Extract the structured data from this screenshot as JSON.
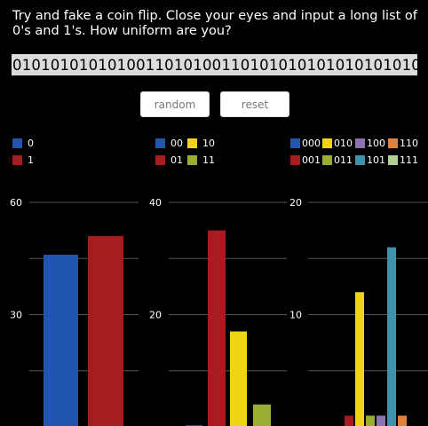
{
  "prompt": "Try and fake a coin flip. Close your eyes and input a long list of 0's and 1's. How uniform are you?",
  "sequence_value": "0101010101010011010100110101010101010101010",
  "buttons": {
    "random_label": "random",
    "reset_label": "reset"
  },
  "colors": {
    "0": "#2255b0",
    "1": "#a51d1e",
    "00": "#2255b0",
    "01": "#a51d1e",
    "10": "#f2d416",
    "11": "#9aad30",
    "000": "#2255b0",
    "001": "#a51d1e",
    "010": "#f2d416",
    "011": "#9aad30",
    "100": "#8c74b0",
    "101": "#3f92ad",
    "110": "#e0803a",
    "111": "#b4cf95"
  },
  "legends": {
    "single": [
      "0",
      "1"
    ],
    "pairs": [
      "00",
      "10",
      "01",
      "11"
    ],
    "triples": [
      "000",
      "010",
      "100",
      "110",
      "001",
      "011",
      "101",
      "111"
    ]
  },
  "chart_data": [
    {
      "type": "bar",
      "categories": [
        "0",
        "1"
      ],
      "values": [
        46,
        51
      ],
      "y_ticks": [
        "60",
        "30"
      ],
      "ylim": [
        0,
        60
      ],
      "grid": true
    },
    {
      "type": "bar",
      "categories": [
        "00",
        "01",
        "10",
        "11"
      ],
      "values": [
        0.3,
        35,
        17,
        4
      ],
      "y_ticks": [
        "40",
        "20"
      ],
      "ylim": [
        0,
        40
      ],
      "grid": true
    },
    {
      "type": "bar",
      "categories": [
        "000",
        "001",
        "010",
        "011",
        "100",
        "101",
        "110",
        "111"
      ],
      "values": [
        0,
        1,
        12,
        1,
        1,
        16,
        1,
        0
      ],
      "y_ticks": [
        "20",
        "10"
      ],
      "ylim": [
        0,
        20
      ],
      "grid": true
    }
  ]
}
